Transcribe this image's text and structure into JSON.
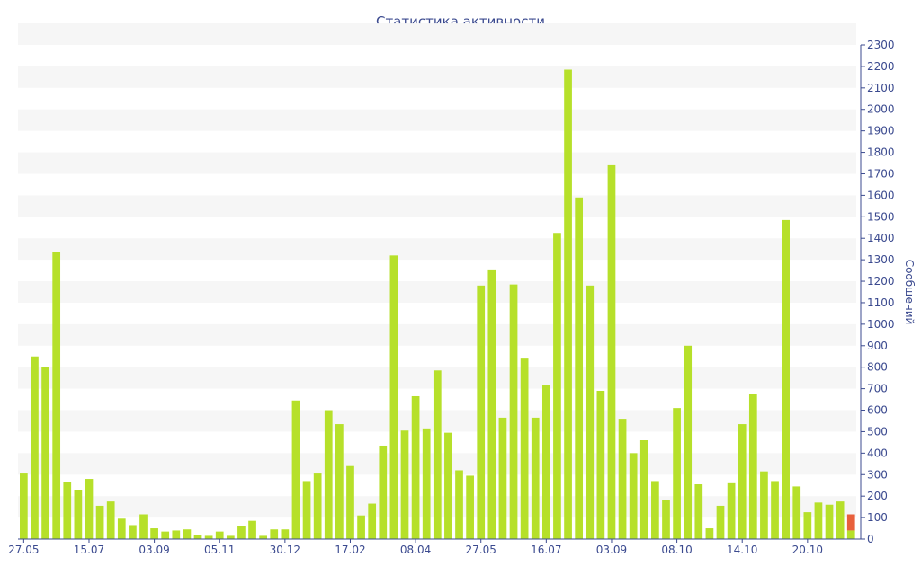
{
  "chart_data": {
    "type": "bar",
    "title": "Статистика активности",
    "ylabel": "Сообщений",
    "xlabel": "",
    "ylim": [
      0,
      2300
    ],
    "ytick_step": 100,
    "grid": "alternating horizontal bands",
    "x_tick_labels": [
      "27.05",
      "15.07",
      "03.09",
      "05.11",
      "30.12",
      "17.02",
      "08.04",
      "27.05",
      "16.07",
      "03.09",
      "08.10",
      "14.10",
      "20.10"
    ],
    "values": [
      305,
      850,
      800,
      1335,
      265,
      230,
      280,
      155,
      175,
      95,
      65,
      115,
      50,
      35,
      40,
      45,
      20,
      15,
      35,
      15,
      60,
      85,
      15,
      45,
      45,
      645,
      270,
      305,
      600,
      535,
      340,
      110,
      165,
      435,
      1320,
      505,
      665,
      515,
      785,
      495,
      320,
      295,
      1180,
      1255,
      565,
      1185,
      840,
      565,
      715,
      1425,
      2185,
      1590,
      1180,
      690,
      1740,
      560,
      400,
      460,
      270,
      180,
      610,
      900,
      255,
      50,
      155,
      260,
      535,
      675,
      315,
      270,
      1485,
      245,
      125,
      170,
      160,
      175,
      115
    ],
    "highlight_last": {
      "color": "#e8603c",
      "overlap_value": 40
    },
    "colors": {
      "bar": "#b6e02a",
      "highlight": "#e8603c",
      "text": "#3b4a8f",
      "band": "#f6f6f6"
    }
  }
}
